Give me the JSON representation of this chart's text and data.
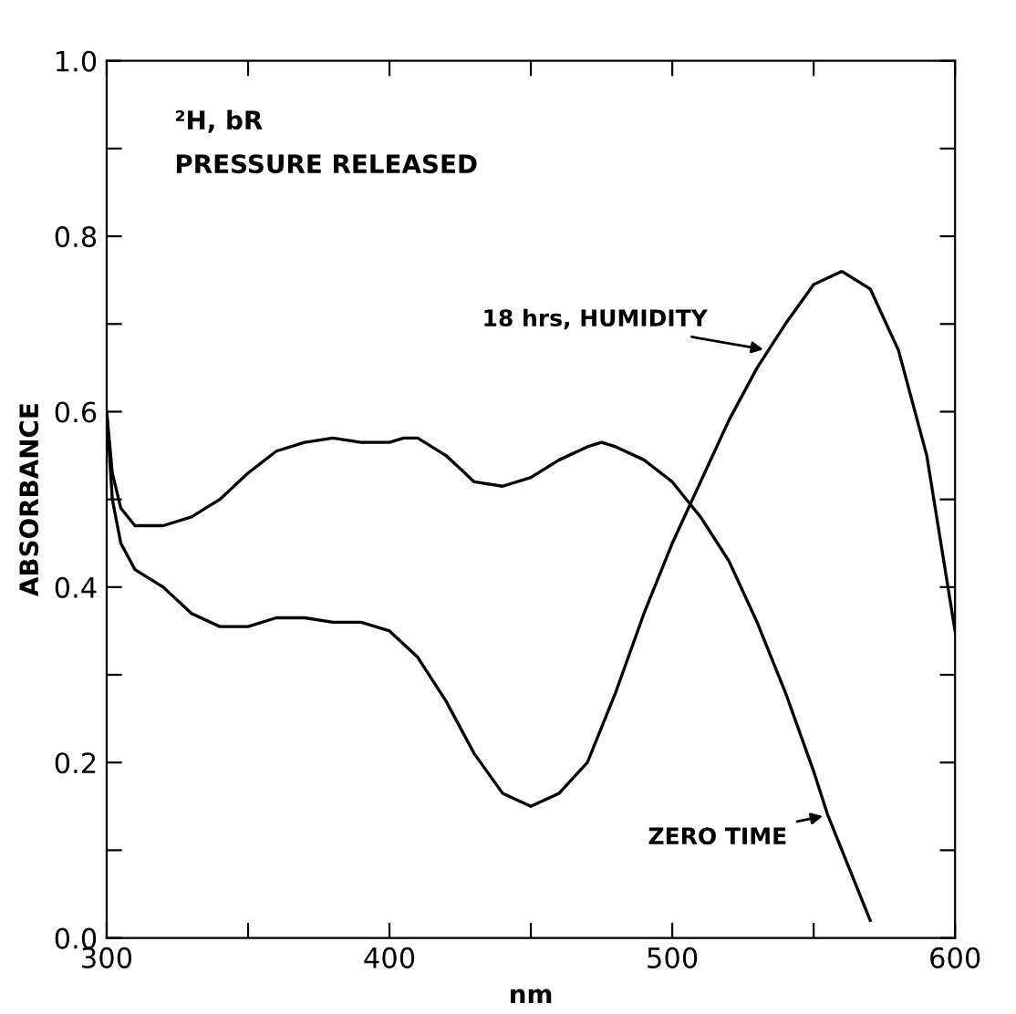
{
  "chart_data": {
    "type": "line",
    "xlabel": "nm",
    "ylabel": "ABSORBANCE",
    "annotations": [
      "²H, bR",
      "PRESSURE RELEASED"
    ],
    "xlim": [
      300,
      600
    ],
    "ylim": [
      0,
      1.0
    ],
    "xticks": [
      300,
      {
        "value": 350,
        "label": null
      },
      400,
      {
        "value": 450,
        "label": null
      },
      500,
      {
        "value": 550,
        "label": null
      },
      600
    ],
    "yticks": [
      "0.0",
      {
        "value": 0.1,
        "label": null
      },
      0.2,
      {
        "value": 0.3,
        "label": null
      },
      0.4,
      {
        "value": 0.5,
        "label": null
      },
      0.6,
      {
        "value": 0.7,
        "label": null
      },
      0.8,
      {
        "value": 0.9,
        "label": null
      },
      "1.0"
    ],
    "grid": false,
    "legend": false,
    "marker": "none",
    "line_style": "solid",
    "series": [
      {
        "name": "ZERO TIME",
        "color": "#000000",
        "x": [
          300,
          302,
          305,
          310,
          320,
          330,
          340,
          350,
          360,
          370,
          380,
          390,
          400,
          405,
          410,
          420,
          430,
          440,
          450,
          460,
          470,
          475,
          480,
          490,
          500,
          510,
          520,
          530,
          540,
          550,
          555,
          560,
          570
        ],
        "values": [
          0.6,
          0.53,
          0.49,
          0.47,
          0.47,
          0.48,
          0.5,
          0.53,
          0.555,
          0.565,
          0.57,
          0.565,
          0.565,
          0.57,
          0.57,
          0.55,
          0.52,
          0.515,
          0.525,
          0.545,
          0.56,
          0.565,
          0.56,
          0.545,
          0.52,
          0.48,
          0.43,
          0.36,
          0.28,
          0.19,
          0.14,
          0.1,
          0.02
        ]
      },
      {
        "name": "18 hrs, HUMIDITY",
        "color": "#000000",
        "x": [
          300,
          302,
          305,
          310,
          320,
          330,
          340,
          350,
          360,
          370,
          380,
          390,
          400,
          410,
          420,
          430,
          440,
          450,
          460,
          470,
          480,
          490,
          500,
          510,
          520,
          530,
          540,
          550,
          560,
          570,
          580,
          590,
          600
        ],
        "values": [
          0.6,
          0.5,
          0.45,
          0.42,
          0.4,
          0.37,
          0.355,
          0.355,
          0.365,
          0.365,
          0.36,
          0.36,
          0.35,
          0.32,
          0.27,
          0.21,
          0.165,
          0.15,
          0.165,
          0.2,
          0.28,
          0.37,
          0.45,
          0.52,
          0.59,
          0.65,
          0.7,
          0.745,
          0.76,
          0.74,
          0.67,
          0.55,
          0.35
        ]
      }
    ]
  }
}
